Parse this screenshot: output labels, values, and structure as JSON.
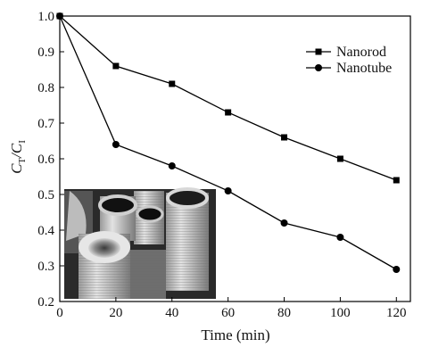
{
  "chart_data": {
    "type": "line",
    "xlabel": "Time (min)",
    "ylabel": "C",
    "ylabel_num_sub": "T",
    "ylabel_sep": "/C",
    "ylabel_den_sub": "I",
    "xlim": [
      0,
      125
    ],
    "ylim": [
      0.2,
      1.0
    ],
    "xticks": [
      0,
      20,
      40,
      60,
      80,
      100,
      120
    ],
    "yticks": [
      0.2,
      0.3,
      0.4,
      0.5,
      0.6,
      0.7,
      0.8,
      0.9,
      1.0
    ],
    "grid": false,
    "legend_position": "top-right",
    "inset_image": "SEM micrograph of hollow nanotubes (grayscale)",
    "series": [
      {
        "name": "Nanorod",
        "marker": "square",
        "x": [
          0,
          20,
          40,
          60,
          80,
          100,
          120
        ],
        "values": [
          1.0,
          0.86,
          0.81,
          0.73,
          0.66,
          0.6,
          0.54
        ]
      },
      {
        "name": "Nanotube",
        "marker": "circle",
        "x": [
          0,
          20,
          40,
          60,
          80,
          100,
          120
        ],
        "values": [
          1.0,
          0.64,
          0.58,
          0.51,
          0.42,
          0.38,
          0.29
        ]
      }
    ]
  }
}
